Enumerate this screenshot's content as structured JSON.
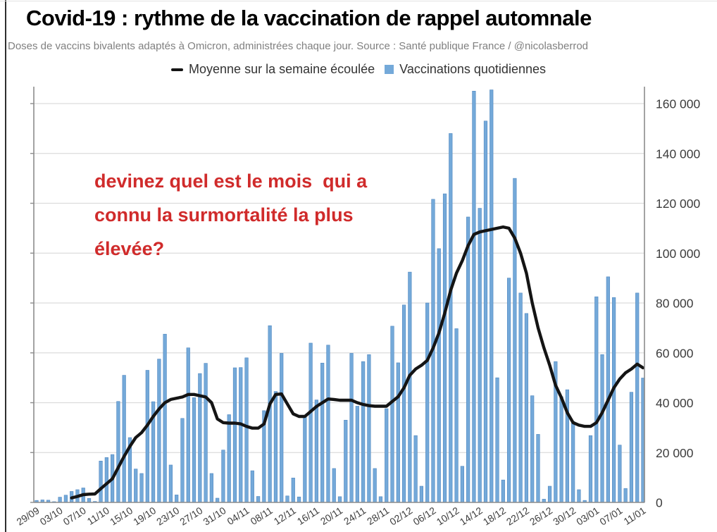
{
  "header": {
    "title": "Covid-19 : rythme de la vaccination de rappel automnale",
    "subtitle": "Doses de vaccins bivalents adaptés à Omicron, administrées chaque jour. Source : Santé publique France / @nicolasberrod"
  },
  "legend": {
    "avg_label": "Moyenne sur la semaine écoulée",
    "daily_label": "Vaccinations quotidiennes"
  },
  "annotation": {
    "lines": [
      "devinez quel est le mois  qui a",
      "connu la surmortalité la plus",
      "élevée?"
    ],
    "color": "#d02b2b"
  },
  "colors": {
    "bar": "#74a9d9",
    "bar_edge": "#4f87c0",
    "line": "#141414",
    "grid": "#dcdcdc",
    "axis": "#8c8c8c",
    "tick_label": "#3d3d3d",
    "annotation": "#d02b2b"
  },
  "chart_data": {
    "type": "bar",
    "title": "Covid-19 : rythme de la vaccination de rappel automnale",
    "xlabel": "",
    "ylabel": "",
    "ylim": [
      0,
      160000
    ],
    "grid": true,
    "legend_position": "top",
    "yticks": [
      0,
      20000,
      40000,
      60000,
      80000,
      100000,
      120000,
      140000,
      160000
    ],
    "ytick_labels": [
      "0",
      "20 000",
      "40 000",
      "60 000",
      "80 000",
      "100 000",
      "120 000",
      "140 000",
      "160 000"
    ],
    "xtick_every": 4,
    "x": [
      "29/09",
      "30/09",
      "01/10",
      "02/10",
      "03/10",
      "04/10",
      "05/10",
      "06/10",
      "07/10",
      "08/10",
      "09/10",
      "10/10",
      "11/10",
      "12/10",
      "13/10",
      "14/10",
      "15/10",
      "16/10",
      "17/10",
      "18/10",
      "19/10",
      "20/10",
      "21/10",
      "22/10",
      "23/10",
      "24/10",
      "25/10",
      "26/10",
      "27/10",
      "28/10",
      "29/10",
      "30/10",
      "31/10",
      "01/11",
      "02/11",
      "03/11",
      "04/11",
      "05/11",
      "06/11",
      "07/11",
      "08/11",
      "09/11",
      "10/11",
      "11/11",
      "12/11",
      "13/11",
      "14/11",
      "15/11",
      "16/11",
      "17/11",
      "18/11",
      "19/11",
      "20/11",
      "21/11",
      "22/11",
      "23/11",
      "24/11",
      "25/11",
      "26/11",
      "27/11",
      "28/11",
      "29/11",
      "30/11",
      "01/12",
      "02/12",
      "03/12",
      "04/12",
      "05/12",
      "06/12",
      "07/12",
      "08/12",
      "09/12",
      "10/12",
      "11/12",
      "12/12",
      "13/12",
      "14/12",
      "15/12",
      "16/12",
      "17/12",
      "18/12",
      "19/12",
      "20/12",
      "21/12",
      "22/12",
      "23/12",
      "24/12",
      "25/12",
      "26/12",
      "27/12",
      "28/12",
      "29/12",
      "30/12",
      "31/12",
      "01/01",
      "02/01",
      "03/01",
      "04/01",
      "05/01",
      "06/01",
      "07/01",
      "08/01",
      "09/01",
      "10/01",
      "11/01"
    ],
    "series": [
      {
        "name": "Vaccinations quotidiennes",
        "type": "bar",
        "values": [
          800,
          1000,
          900,
          300,
          2100,
          2900,
          4400,
          5100,
          5800,
          1600,
          400,
          16600,
          18000,
          19200,
          40500,
          51000,
          26000,
          13400,
          11600,
          53000,
          40400,
          57500,
          67500,
          15000,
          3000,
          33700,
          62000,
          42000,
          51700,
          55800,
          11600,
          1700,
          21000,
          35200,
          54000,
          54100,
          58000,
          12700,
          2400,
          36800,
          70900,
          44500,
          59800,
          2600,
          9800,
          2200,
          34600,
          63900,
          41100,
          55900,
          63100,
          13600,
          2300,
          33000,
          59800,
          38600,
          56500,
          59300,
          13600,
          2300,
          37600,
          70700,
          56000,
          79200,
          92400,
          26800,
          6500,
          80000,
          121600,
          101800,
          123800,
          148000,
          69700,
          14500,
          114500,
          165000,
          118000,
          153000,
          165500,
          50000,
          9000,
          90000,
          130000,
          84000,
          75800,
          42800,
          27300,
          1300,
          6500,
          56500,
          42400,
          45200,
          32500,
          5100,
          800,
          26800,
          82500,
          59300,
          90500,
          82200,
          23000,
          5600,
          44200,
          84000,
          49900
        ]
      },
      {
        "name": "Moyenne sur la semaine écoulée",
        "type": "line",
        "values": [
          null,
          null,
          null,
          null,
          null,
          null,
          1800,
          2400,
          3100,
          3300,
          3400,
          5500,
          7500,
          9500,
          14000,
          18500,
          22500,
          26000,
          28000,
          31000,
          34500,
          37500,
          40000,
          41300,
          41800,
          42300,
          43300,
          43300,
          42800,
          42300,
          40000,
          33500,
          32000,
          31800,
          31800,
          31500,
          30500,
          29800,
          29800,
          31500,
          39500,
          43300,
          43500,
          39500,
          35500,
          34500,
          34500,
          36500,
          38500,
          40000,
          41500,
          41300,
          41000,
          41000,
          41000,
          40000,
          39300,
          38800,
          38600,
          38600,
          38600,
          40500,
          42400,
          46000,
          51000,
          53500,
          55000,
          57000,
          62000,
          68000,
          76000,
          85000,
          92000,
          97000,
          103000,
          107500,
          108500,
          109000,
          109500,
          110000,
          110500,
          110000,
          106000,
          100000,
          92000,
          80000,
          70000,
          62000,
          55000,
          47000,
          42000,
          36000,
          32000,
          31000,
          30500,
          30500,
          32000,
          36000,
          41000,
          46000,
          49500,
          52000,
          53500,
          55500,
          54000
        ]
      }
    ]
  }
}
